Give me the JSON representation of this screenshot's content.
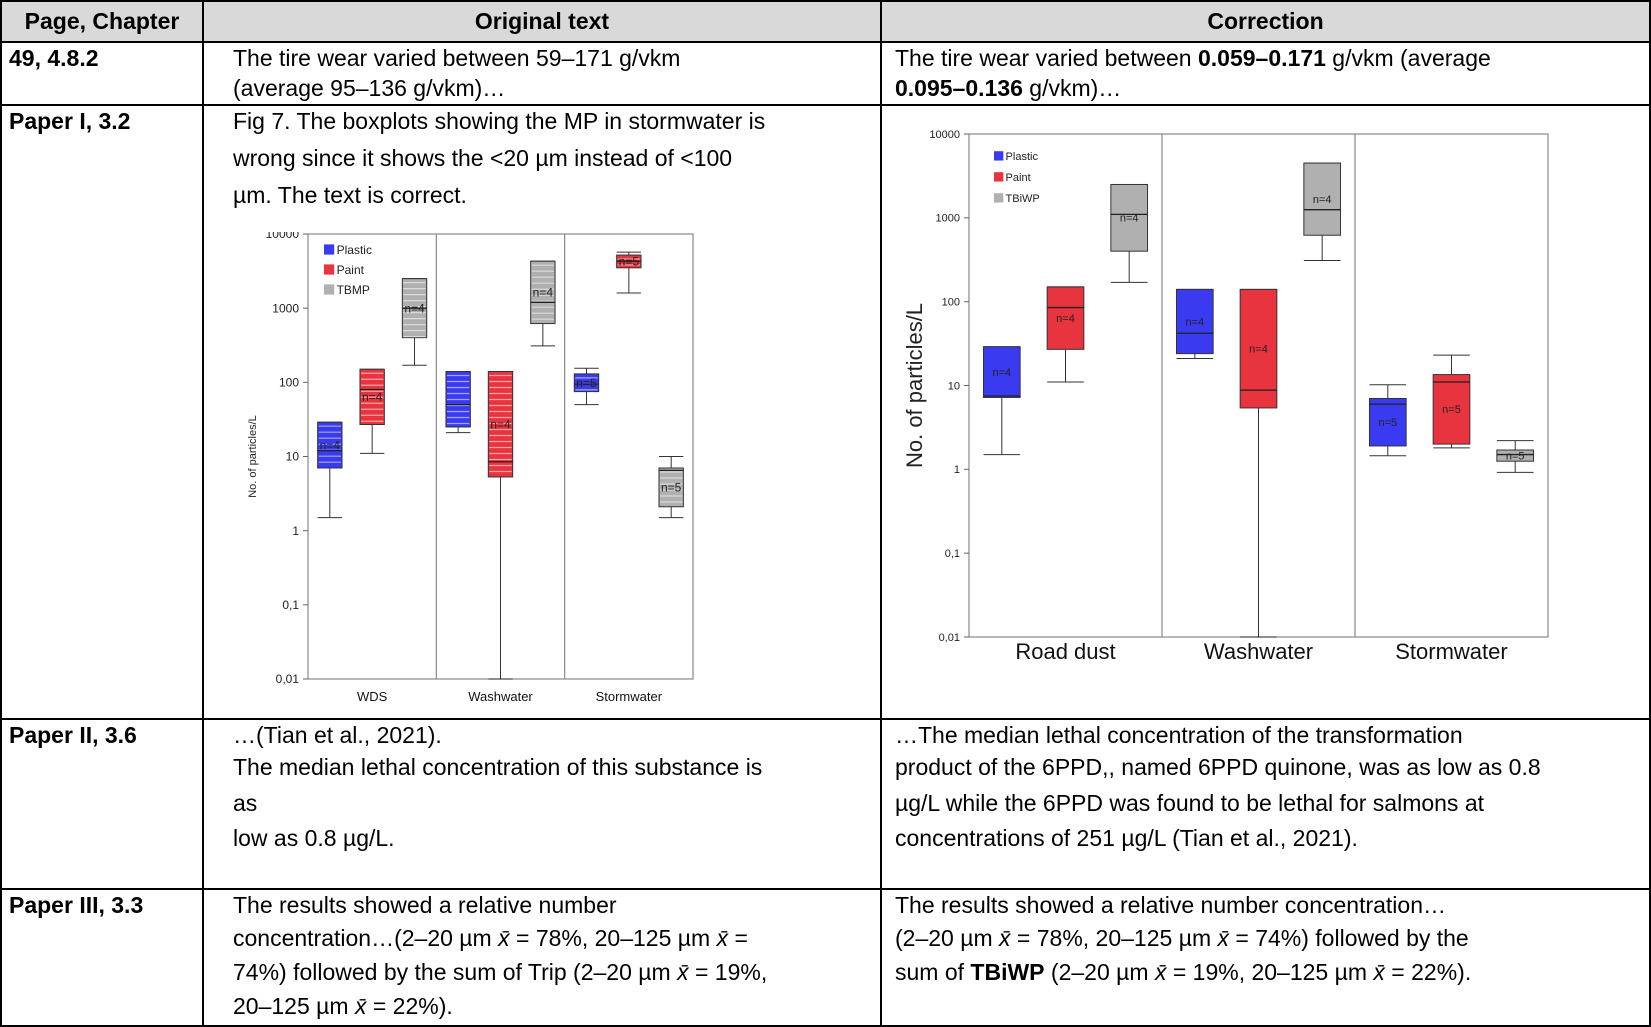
{
  "table": {
    "headers": {
      "col1": "Page, Chapter",
      "col2": "Original text",
      "col3": "Correction"
    },
    "rows": [
      {
        "chapter": "49, 4.8.2",
        "original": [
          "The tire wear varied between 59–171 g/vkm",
          "(average 95–136 g/vkm)…"
        ],
        "correction": {
          "l1_a": "The tire wear varied between ",
          "l1_b": "0.059–0.171",
          "l1_c": " g/vkm (average",
          "l2_a": "0.095–0.136",
          "l2_b": " g/vkm)…"
        }
      },
      {
        "chapter": "Paper I, 3.2",
        "original": [
          "Fig 7. The boxplots showing the MP in stormwater is",
          "wrong since it shows the <20 µm instead of <100",
          "µm. The text is correct."
        ]
      },
      {
        "chapter": "Paper II, 3.6",
        "original": [
          "…(Tian et al., 2021).",
          "The median lethal concentration of this substance is",
          "as",
          "low as 0.8 µg/L."
        ],
        "correction": [
          "…The median lethal concentration of the transformation",
          "product of the 6PPD,, named 6PPD quinone, was as low as 0.8",
          "µg/L while the 6PPD was found to be lethal for salmons at",
          "concentrations of 251 µg/L (Tian et al., 2021)."
        ]
      },
      {
        "chapter": "Paper III, 3.3",
        "original": {
          "l1": "The results showed a relative number",
          "l2_a": "concentration…(2–20 µm ",
          "l2_xbar": "x̄",
          "l2_b": " = 78%, 20–125 µm ",
          "l2_xbar2": "x̄",
          "l2_c": " =",
          "l3_a": "74%) followed by the sum of Trip (2–20 µm ",
          "l3_xbar": "x̄",
          "l3_b": " = 19%,",
          "l4_a": "20–125 µm ",
          "l4_xbar": "x̄",
          "l4_b": " = 22%)."
        },
        "correction": {
          "l1": "The results showed a relative number concentration…",
          "l2_a": "(2–20 µm ",
          "l2_xbar": "x̄",
          "l2_b": " = 78%, 20–125 µm ",
          "l2_xbar2": "x̄",
          "l2_c": " = 74%) followed by the",
          "l3_a": "sum of ",
          "l3_bold": "TBiWP",
          "l3_b": " (2–20 µm ",
          "l3_xbar": "x̄",
          "l3_c": " = 19%, 20–125 µm ",
          "l3_xbar2": "x̄",
          "l3_d": " = 22%)."
        }
      }
    ]
  },
  "chart_data": [
    {
      "type": "box",
      "figure": "original",
      "scale": "log",
      "ylabel": "No. of particles/L",
      "ylim": [
        0.01,
        10000
      ],
      "y_ticks": [
        "10000",
        "1000",
        "100",
        "10",
        "1",
        "0,1",
        "0,01"
      ],
      "groups": [
        "WDS",
        "Washwater",
        "Stormwater"
      ],
      "legend": [
        {
          "name": "Plastic",
          "color": "#3a3af0"
        },
        {
          "name": "Paint",
          "color": "#e8343f"
        },
        {
          "name": "TBMP",
          "color": "#b0b0b0"
        }
      ],
      "boxes": [
        {
          "group": "WDS",
          "series": "Plastic",
          "min": 1.5,
          "q1": 7,
          "median": 12,
          "q3": 29,
          "max": 29,
          "label": "n=4"
        },
        {
          "group": "WDS",
          "series": "Paint",
          "min": 11,
          "q1": 27,
          "median": 80,
          "q3": 150,
          "max": 150,
          "label": "n=4"
        },
        {
          "group": "WDS",
          "series": "TBMP",
          "min": 170,
          "q1": 400,
          "median": 1000,
          "q3": 2500,
          "max": 2500,
          "label": "n=4"
        },
        {
          "group": "Washwater",
          "series": "Plastic",
          "min": 21,
          "q1": 25,
          "median": 50,
          "q3": 140,
          "max": 140,
          "label": ""
        },
        {
          "group": "Washwater",
          "series": "Paint",
          "min": 0.01,
          "q1": 5.3,
          "median": 8.5,
          "q3": 140,
          "max": 140,
          "label": "n=4"
        },
        {
          "group": "Washwater",
          "series": "TBMP",
          "min": 310,
          "q1": 620,
          "median": 1200,
          "q3": 4300,
          "max": 4300,
          "label": "n=4"
        },
        {
          "group": "Stormwater",
          "series": "Plastic",
          "min": 50,
          "q1": 75,
          "median": 95,
          "q3": 130,
          "max": 155,
          "label": "n=5"
        },
        {
          "group": "Stormwater",
          "series": "Paint",
          "min": 1600,
          "q1": 3500,
          "median": 4300,
          "q3": 5200,
          "max": 5700,
          "label": "n=5"
        },
        {
          "group": "Stormwater",
          "series": "TBMP",
          "min": 1.5,
          "q1": 2.1,
          "median": 6.5,
          "q3": 7,
          "max": 10,
          "label": "n=5"
        }
      ]
    },
    {
      "type": "box",
      "figure": "correction",
      "scale": "log",
      "ylabel": "No. of particles/L",
      "ylim": [
        0.01,
        10000
      ],
      "y_ticks": [
        "10000",
        "1000",
        "100",
        "10",
        "1",
        "0,1",
        "0,01"
      ],
      "groups": [
        "Road dust",
        "Washwater",
        "Stormwater"
      ],
      "legend": [
        {
          "name": "Plastic",
          "color": "#3a3af0"
        },
        {
          "name": "Paint",
          "color": "#e8343f"
        },
        {
          "name": "TBiWP",
          "color": "#b0b0b0"
        }
      ],
      "boxes": [
        {
          "group": "Road dust",
          "series": "Plastic",
          "min": 1.5,
          "q1": 7.2,
          "median": 7.5,
          "q3": 29,
          "max": 29,
          "label": "n=4"
        },
        {
          "group": "Road dust",
          "series": "Paint",
          "min": 11,
          "q1": 27,
          "median": 85,
          "q3": 150,
          "max": 150,
          "label": "n=4"
        },
        {
          "group": "Road dust",
          "series": "TBiWP",
          "min": 170,
          "q1": 400,
          "median": 1100,
          "q3": 2500,
          "max": 2500,
          "label": "n=4"
        },
        {
          "group": "Washwater",
          "series": "Plastic",
          "min": 21,
          "q1": 24,
          "median": 42,
          "q3": 140,
          "max": 140,
          "label": "n=4"
        },
        {
          "group": "Washwater",
          "series": "Paint",
          "min": 0.01,
          "q1": 5.4,
          "median": 8.8,
          "q3": 140,
          "max": 140,
          "label": "n=4"
        },
        {
          "group": "Washwater",
          "series": "TBiWP",
          "min": 310,
          "q1": 620,
          "median": 1250,
          "q3": 4500,
          "max": 4500,
          "label": "n=4"
        },
        {
          "group": "Stormwater",
          "series": "Plastic",
          "min": 1.45,
          "q1": 1.9,
          "median": 6,
          "q3": 7,
          "max": 10.2,
          "label": "n=5"
        },
        {
          "group": "Stormwater",
          "series": "Paint",
          "min": 1.8,
          "q1": 2,
          "median": 11,
          "q3": 13.5,
          "max": 23,
          "label": "n=5"
        },
        {
          "group": "Stormwater",
          "series": "TBiWP",
          "min": 0.92,
          "q1": 1.25,
          "median": 1.5,
          "q3": 1.7,
          "max": 2.2,
          "label": "n=5"
        }
      ]
    }
  ]
}
